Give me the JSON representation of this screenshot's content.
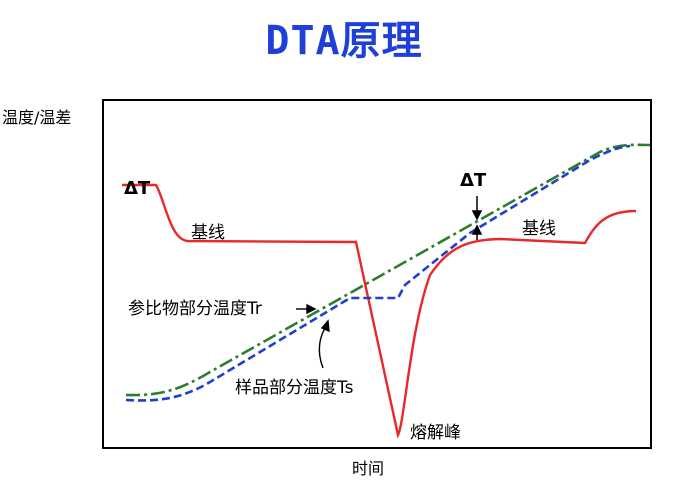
{
  "title": "DTA原理",
  "axes": {
    "ylabel": "温度/温差",
    "xlabel": "时间"
  },
  "annotations": {
    "delta_t_left": "ΔT",
    "delta_t_right": "ΔT",
    "baseline_left": "基线",
    "baseline_right": "基线",
    "reference_temp": "参比物部分温度Tr",
    "sample_temp": "样品部分温度Ts",
    "melting_peak": "熔解峰"
  },
  "colors": {
    "title": "#1f3fd8",
    "dta_curve": "#e8282a",
    "reference_curve": "#2e7d2e",
    "sample_curve": "#1f3fcc"
  }
}
